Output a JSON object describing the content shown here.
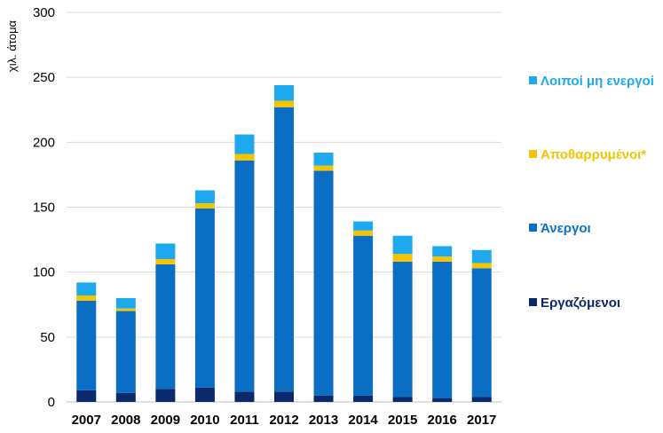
{
  "chart_data": {
    "type": "bar",
    "stacked": true,
    "title": "",
    "xlabel": "",
    "ylabel": "χιλ. άτομα",
    "ylim": [
      0,
      300
    ],
    "yticks": [
      "0",
      "50",
      "100",
      "150",
      "200",
      "250",
      "300"
    ],
    "grid": true,
    "legend_position": "right",
    "categories": [
      "2007",
      "2008",
      "2009",
      "2010",
      "2011",
      "2012",
      "2013",
      "2014",
      "2015",
      "2016",
      "2017"
    ],
    "series": [
      {
        "name": "Εργαζόμενοι",
        "color": "#0b2a6b",
        "values": [
          9,
          7,
          10,
          11,
          8,
          8,
          5,
          5,
          4,
          3,
          4
        ]
      },
      {
        "name": "Άνεργοι",
        "color": "#0a6fc4",
        "values": [
          69,
          63,
          96,
          138,
          178,
          219,
          173,
          123,
          104,
          105,
          99
        ]
      },
      {
        "name": "Αποθαρρυμένοι*",
        "color": "#f5c400",
        "values": [
          4,
          2,
          4,
          4,
          5,
          5,
          4,
          4,
          6,
          4,
          4
        ]
      },
      {
        "name": "Λοιποί μη ενεργοί",
        "color": "#1ea8ee",
        "values": [
          10,
          8,
          12,
          10,
          15,
          12,
          10,
          7,
          14,
          8,
          10
        ]
      }
    ]
  },
  "legend": [
    {
      "label": "Λοιποί μη ενεργοί",
      "color": "#1ea8ee"
    },
    {
      "label": "Αποθαρρυμένοι*",
      "color": "#f5c400"
    },
    {
      "label": "Άνεργοι",
      "color": "#0a6fc4"
    },
    {
      "label": "Εργαζόμενοι",
      "color": "#0b2a6b"
    }
  ]
}
